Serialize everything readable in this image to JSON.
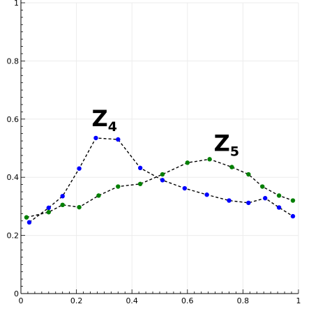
{
  "chart_data": {
    "type": "line",
    "title": "",
    "xlabel": "",
    "ylabel": "",
    "xlim": [
      0,
      1
    ],
    "ylim": [
      0,
      1
    ],
    "x_ticks": [
      "0",
      "0.2",
      "0.4",
      "0.6",
      "0.8",
      "1"
    ],
    "y_ticks": [
      "0",
      "0.2",
      "0.4",
      "0.6",
      "0.8",
      "1"
    ],
    "grid": true,
    "line_style": "dashed black",
    "series": [
      {
        "color": "#0000ff",
        "x": [
          0.03,
          0.1,
          0.15,
          0.21,
          0.27,
          0.35,
          0.43,
          0.51,
          0.59,
          0.67,
          0.75,
          0.82,
          0.88,
          0.93,
          0.98
        ],
        "y": [
          0.245,
          0.295,
          0.335,
          0.43,
          0.535,
          0.53,
          0.432,
          0.39,
          0.362,
          0.34,
          0.32,
          0.312,
          0.328,
          0.296,
          0.266
        ]
      },
      {
        "color": "#007f00",
        "x": [
          0.02,
          0.1,
          0.15,
          0.21,
          0.28,
          0.35,
          0.43,
          0.51,
          0.6,
          0.68,
          0.76,
          0.82,
          0.87,
          0.93,
          0.98
        ],
        "y": [
          0.262,
          0.28,
          0.305,
          0.297,
          0.337,
          0.368,
          0.377,
          0.41,
          0.45,
          0.462,
          0.435,
          0.41,
          0.368,
          0.337,
          0.32
        ]
      }
    ],
    "annotations": [
      {
        "main": "Z",
        "sub": "4",
        "x": 0.255,
        "y": 0.575
      },
      {
        "main": "Z",
        "sub": "5",
        "x": 0.695,
        "y": 0.49
      }
    ]
  }
}
